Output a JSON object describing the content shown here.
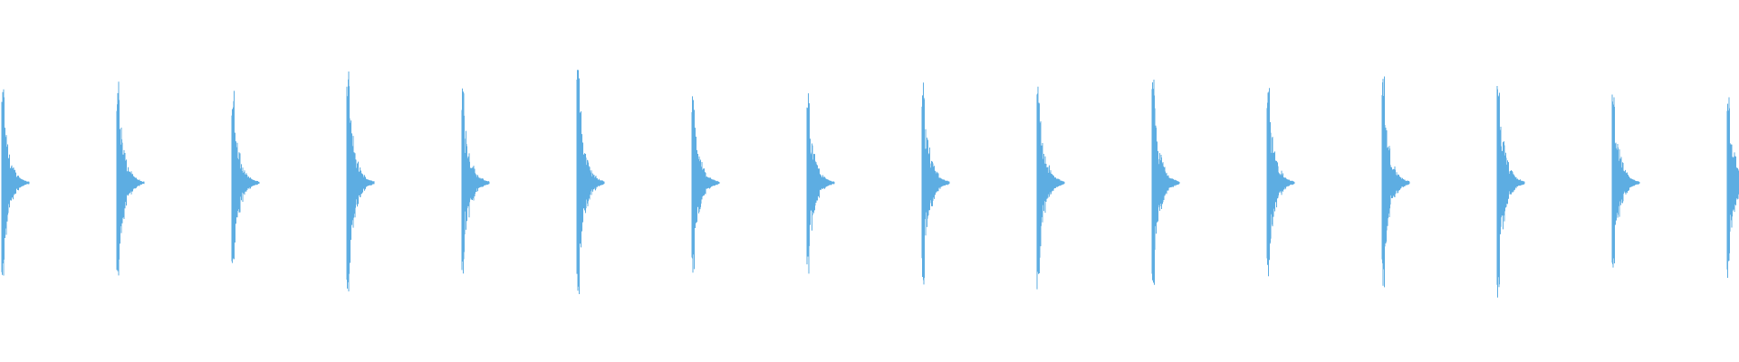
{
  "chart_data": {
    "type": "waveform",
    "title": "",
    "xlabel": "",
    "ylabel": "",
    "ylim": [
      -1,
      1
    ],
    "grid": false,
    "axes_visible": false,
    "color": "#5DADE2",
    "pulse_count": 16,
    "pulses": [
      {
        "index": 0,
        "peak_amplitude": 0.48
      },
      {
        "index": 1,
        "peak_amplitude": 0.5
      },
      {
        "index": 2,
        "peak_amplitude": 0.47
      },
      {
        "index": 3,
        "peak_amplitude": 0.58
      },
      {
        "index": 4,
        "peak_amplitude": 0.5
      },
      {
        "index": 5,
        "peak_amplitude": 0.62
      },
      {
        "index": 6,
        "peak_amplitude": 0.47
      },
      {
        "index": 7,
        "peak_amplitude": 0.46
      },
      {
        "index": 8,
        "peak_amplitude": 0.54
      },
      {
        "index": 9,
        "peak_amplitude": 0.53
      },
      {
        "index": 10,
        "peak_amplitude": 0.56
      },
      {
        "index": 11,
        "peak_amplitude": 0.52
      },
      {
        "index": 12,
        "peak_amplitude": 0.55
      },
      {
        "index": 13,
        "peak_amplitude": 0.56
      },
      {
        "index": 14,
        "peak_amplitude": 0.48
      },
      {
        "index": 15,
        "peak_amplitude": 0.47
      }
    ]
  }
}
